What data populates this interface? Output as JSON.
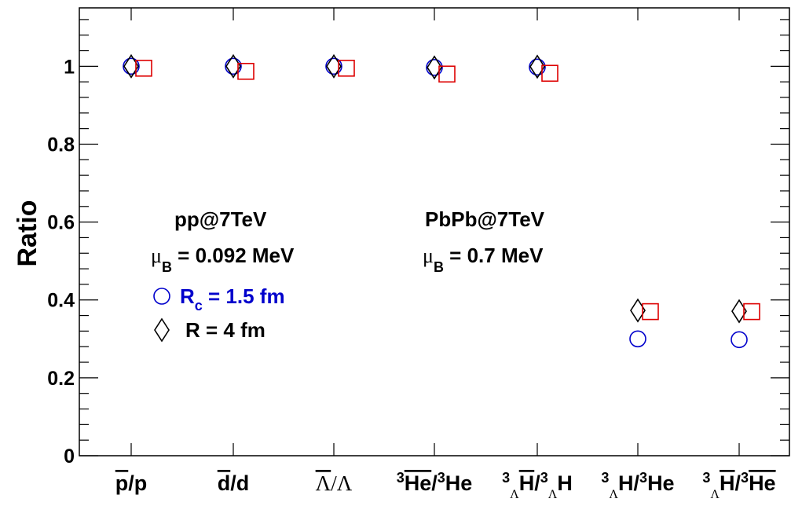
{
  "chart_data": {
    "type": "scatter",
    "ylabel": "Ratio",
    "ylim": [
      0,
      1.15
    ],
    "yticks": [
      "0",
      "0.2",
      "0.4",
      "0.6",
      "0.8",
      "1"
    ],
    "categories": [
      {
        "base": "p",
        "bar": "p",
        "rest": "/p"
      },
      {
        "base": "d",
        "bar": "d",
        "rest": "/d"
      },
      {
        "base": "Λ",
        "bar": "Λ",
        "rest": "/Λ"
      },
      {
        "sup1": "3",
        "bar": "He",
        "rest": "/",
        "sup2": "3",
        "tail": "He"
      },
      {
        "sup1": "3",
        "sub1": "Λ",
        "bar": "H",
        "rest": "/",
        "sup2": "3",
        "sub2": "Λ",
        "tail": "H"
      },
      {
        "sup1": "3",
        "sub1": "Λ",
        "base": "H",
        "rest": "/",
        "sup2": "3",
        "tail": "He"
      },
      {
        "sup1": "3",
        "sub1": "Λ",
        "bar": "H",
        "rest": "/",
        "sup2": "3",
        "tailbar": "He"
      }
    ],
    "series": [
      {
        "marker": "circle",
        "color": "#0000cc",
        "values": [
          1.0,
          1.0,
          1.0,
          0.997,
          0.998,
          0.3,
          0.298
        ]
      },
      {
        "marker": "diamond",
        "color": "#000000",
        "values": [
          1.0,
          1.0,
          1.0,
          0.997,
          0.999,
          0.373,
          0.371
        ]
      },
      {
        "marker": "square",
        "color": "#dd0000",
        "values": [
          0.995,
          0.987,
          0.995,
          0.98,
          0.982,
          0.37,
          0.37
        ]
      }
    ],
    "annotations": {
      "pp_title": "pp@7TeV",
      "pp_mu_prefix": "μ",
      "pp_mu_sub": "B",
      "pp_mu_value": " = 0.092 MeV",
      "pb_title": "PbPb@7TeV",
      "pb_mu_prefix": "μ",
      "pb_mu_sub": "B",
      "pb_mu_value": " = 0.7 MeV",
      "legend_circle_main": "R",
      "legend_circle_sub": "c",
      "legend_circle_value": " = 1.5 fm",
      "legend_diamond_text": "R = 4 fm"
    }
  }
}
